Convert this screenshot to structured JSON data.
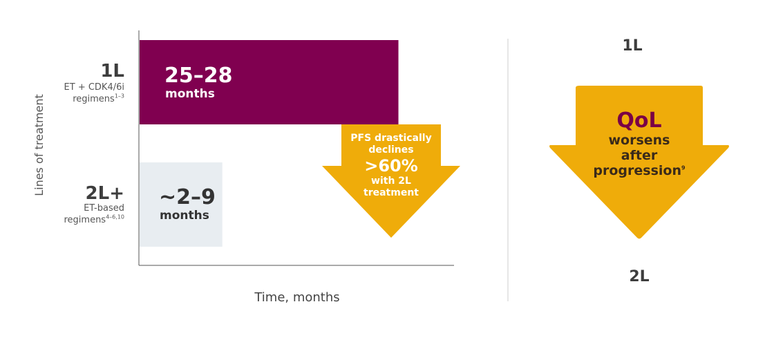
{
  "colors": {
    "bar_1l": "#800050",
    "bar_2l": "#e8edf1",
    "arrow": "#efac0a",
    "qol_text": "#7a0046",
    "text_dark": "#333333",
    "axis": "#555555"
  },
  "chart_data": {
    "type": "bar",
    "orientation": "horizontal",
    "ylabel": "Lines of treatment",
    "xlabel": "Time, months",
    "categories": [
      {
        "label": "1L",
        "sub_1": "ET + CDK4/6i",
        "sub_2": "regimens",
        "sup": "1–3"
      },
      {
        "label": "2L+",
        "sub_1": "ET-based",
        "sub_2": "regimens",
        "sup": "4–6,10"
      }
    ],
    "series": [
      {
        "values": [
          28,
          9
        ],
        "ranges": [
          [
            25,
            28
          ],
          [
            2,
            9
          ]
        ]
      }
    ],
    "xlim": [
      0,
      34
    ],
    "data_labels": [
      {
        "value": "25–28",
        "unit": "months"
      },
      {
        "value": "~2–9",
        "unit": "months"
      }
    ],
    "annotation_arrow": {
      "line1": "PFS drastically",
      "line2": "declines",
      "big": ">60%",
      "line3": "with 2L",
      "line4": "treatment"
    }
  },
  "qol_panel": {
    "top_label": "1L",
    "bottom_label": "2L",
    "title": "QoL",
    "line1": "worsens",
    "line2": "after",
    "line3": "progression",
    "sup": "9"
  }
}
